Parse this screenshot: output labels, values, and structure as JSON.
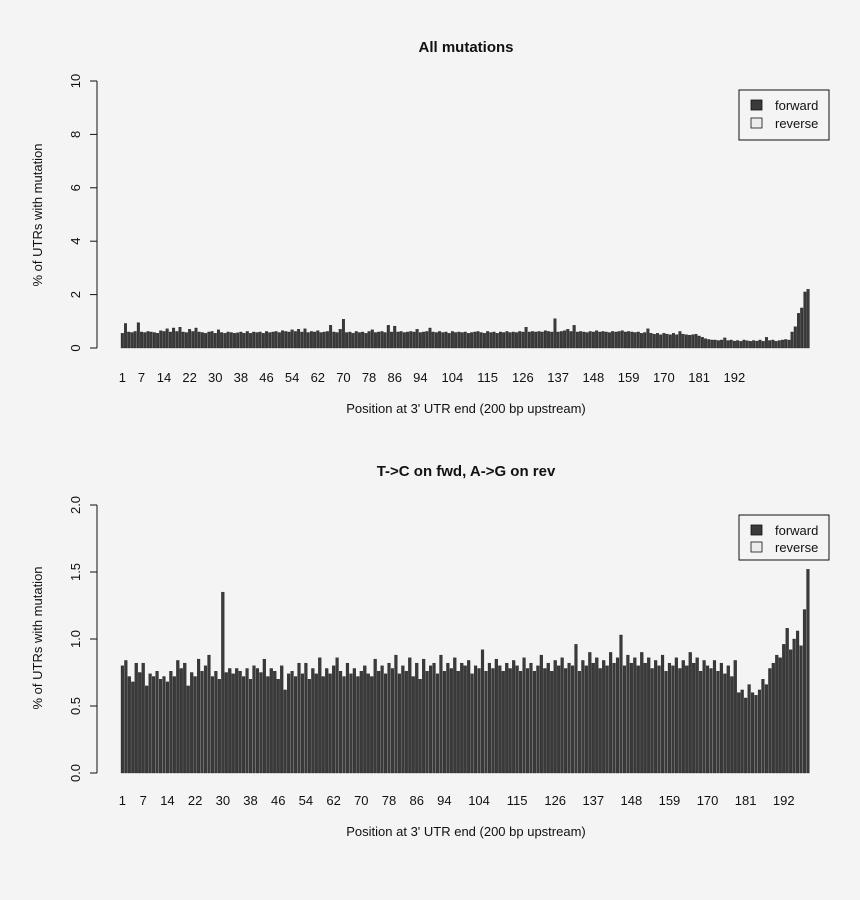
{
  "colors": {
    "background": "#f4f4f4",
    "forward": "#3a3a3a",
    "reverse": "#ececec",
    "ink": "#111111"
  },
  "chart_data": [
    {
      "type": "bar",
      "title": "All mutations",
      "xlabel": "Position at 3' UTR end (200 bp upstream)",
      "ylabel": "% of UTRs with mutation",
      "ylim": [
        0,
        10
      ],
      "yticks": [
        "0",
        "2",
        "4",
        "6",
        "8",
        "10"
      ],
      "ytick_values": [
        0,
        2,
        4,
        6,
        8,
        10
      ],
      "xtick_labels": [
        "1",
        "7",
        "14",
        "22",
        "30",
        "38",
        "46",
        "54",
        "62",
        "70",
        "78",
        "86",
        "94",
        "104",
        "115",
        "126",
        "137",
        "148",
        "159",
        "170",
        "181",
        "192"
      ],
      "legend": {
        "position": "top-right",
        "entries": [
          "forward",
          "reverse"
        ]
      },
      "grid": false,
      "series": [
        {
          "name": "forward",
          "values": [
            0.55,
            0.92,
            0.6,
            0.58,
            0.62,
            0.95,
            0.6,
            0.58,
            0.62,
            0.6,
            0.58,
            0.55,
            0.65,
            0.62,
            0.72,
            0.6,
            0.75,
            0.62,
            0.78,
            0.6,
            0.58,
            0.7,
            0.62,
            0.75,
            0.6,
            0.58,
            0.55,
            0.6,
            0.62,
            0.55,
            0.68,
            0.58,
            0.55,
            0.6,
            0.58,
            0.55,
            0.57,
            0.6,
            0.55,
            0.62,
            0.55,
            0.6,
            0.58,
            0.6,
            0.55,
            0.62,
            0.58,
            0.6,
            0.62,
            0.58,
            0.65,
            0.62,
            0.6,
            0.68,
            0.62,
            0.7,
            0.6,
            0.72,
            0.58,
            0.62,
            0.6,
            0.65,
            0.58,
            0.6,
            0.62,
            0.85,
            0.6,
            0.58,
            0.7,
            1.08,
            0.58,
            0.6,
            0.55,
            0.62,
            0.58,
            0.6,
            0.55,
            0.62,
            0.68,
            0.58,
            0.6,
            0.62,
            0.58,
            0.85,
            0.6,
            0.82,
            0.6,
            0.62,
            0.58,
            0.6,
            0.62,
            0.6,
            0.7,
            0.58,
            0.6,
            0.62,
            0.75,
            0.6,
            0.58,
            0.62,
            0.58,
            0.6,
            0.55,
            0.62,
            0.58,
            0.6,
            0.58,
            0.6,
            0.55,
            0.58,
            0.6,
            0.62,
            0.58,
            0.55,
            0.62,
            0.58,
            0.6,
            0.55,
            0.6,
            0.58,
            0.62,
            0.58,
            0.6,
            0.58,
            0.62,
            0.6,
            0.78,
            0.6,
            0.62,
            0.6,
            0.62,
            0.6,
            0.65,
            0.62,
            0.6,
            1.1,
            0.6,
            0.62,
            0.65,
            0.7,
            0.62,
            0.85,
            0.6,
            0.62,
            0.6,
            0.58,
            0.62,
            0.6,
            0.65,
            0.6,
            0.62,
            0.6,
            0.58,
            0.62,
            0.6,
            0.62,
            0.65,
            0.6,
            0.62,
            0.6,
            0.58,
            0.6,
            0.55,
            0.58,
            0.72,
            0.55,
            0.52,
            0.55,
            0.5,
            0.55,
            0.52,
            0.5,
            0.55,
            0.5,
            0.62,
            0.52,
            0.5,
            0.48,
            0.5,
            0.52,
            0.45,
            0.4,
            0.35,
            0.32,
            0.3,
            0.3,
            0.28,
            0.3,
            0.38,
            0.28,
            0.3,
            0.26,
            0.28,
            0.25,
            0.3,
            0.27,
            0.25,
            0.28,
            0.26,
            0.3,
            0.25,
            0.4,
            0.28,
            0.3,
            0.25,
            0.28,
            0.3,
            0.32,
            0.3,
            0.6,
            0.8,
            1.3,
            1.5,
            2.1,
            2.2
          ]
        },
        {
          "name": "reverse",
          "values": []
        }
      ]
    },
    {
      "type": "bar",
      "title": "T->C on fwd, A->G on rev",
      "xlabel": "Position at 3' UTR end (200 bp upstream)",
      "ylabel": "% of UTRs with mutation",
      "ylim": [
        0,
        2
      ],
      "yticks": [
        "0.0",
        "0.5",
        "1.0",
        "1.5",
        "2.0"
      ],
      "ytick_values": [
        0,
        0.5,
        1,
        1.5,
        2
      ],
      "xtick_labels": [
        "1",
        "7",
        "14",
        "22",
        "30",
        "38",
        "46",
        "54",
        "62",
        "70",
        "78",
        "86",
        "94",
        "104",
        "115",
        "126",
        "137",
        "148",
        "159",
        "170",
        "181",
        "192"
      ],
      "legend": {
        "position": "top-right",
        "entries": [
          "forward",
          "reverse"
        ]
      },
      "grid": false,
      "series": [
        {
          "name": "forward",
          "values": [
            0.8,
            0.84,
            0.72,
            0.68,
            0.82,
            0.75,
            0.82,
            0.65,
            0.74,
            0.72,
            0.76,
            0.7,
            0.72,
            0.68,
            0.76,
            0.72,
            0.84,
            0.78,
            0.82,
            0.65,
            0.75,
            0.72,
            0.85,
            0.76,
            0.8,
            0.88,
            0.72,
            0.76,
            0.7,
            1.35,
            0.75,
            0.78,
            0.74,
            0.78,
            0.76,
            0.72,
            0.78,
            0.7,
            0.8,
            0.78,
            0.75,
            0.85,
            0.72,
            0.78,
            0.76,
            0.7,
            0.8,
            0.62,
            0.74,
            0.76,
            0.72,
            0.82,
            0.74,
            0.82,
            0.7,
            0.78,
            0.74,
            0.86,
            0.72,
            0.78,
            0.74,
            0.8,
            0.86,
            0.76,
            0.72,
            0.82,
            0.74,
            0.78,
            0.72,
            0.76,
            0.8,
            0.74,
            0.72,
            0.85,
            0.76,
            0.8,
            0.74,
            0.82,
            0.78,
            0.88,
            0.74,
            0.8,
            0.76,
            0.86,
            0.72,
            0.82,
            0.7,
            0.85,
            0.76,
            0.8,
            0.82,
            0.74,
            0.88,
            0.76,
            0.82,
            0.78,
            0.86,
            0.76,
            0.82,
            0.8,
            0.84,
            0.74,
            0.8,
            0.78,
            0.92,
            0.76,
            0.82,
            0.78,
            0.85,
            0.8,
            0.76,
            0.82,
            0.78,
            0.84,
            0.8,
            0.76,
            0.86,
            0.78,
            0.82,
            0.76,
            0.8,
            0.88,
            0.78,
            0.82,
            0.76,
            0.84,
            0.8,
            0.86,
            0.78,
            0.82,
            0.8,
            0.96,
            0.76,
            0.84,
            0.8,
            0.9,
            0.82,
            0.86,
            0.78,
            0.84,
            0.8,
            0.9,
            0.82,
            0.86,
            1.03,
            0.8,
            0.88,
            0.82,
            0.86,
            0.8,
            0.9,
            0.82,
            0.86,
            0.78,
            0.84,
            0.8,
            0.88,
            0.76,
            0.82,
            0.8,
            0.86,
            0.78,
            0.84,
            0.8,
            0.9,
            0.82,
            0.86,
            0.76,
            0.84,
            0.8,
            0.78,
            0.84,
            0.76,
            0.82,
            0.74,
            0.8,
            0.72,
            0.84,
            0.6,
            0.62,
            0.56,
            0.66,
            0.6,
            0.58,
            0.62,
            0.7,
            0.66,
            0.78,
            0.82,
            0.88,
            0.86,
            0.96,
            1.08,
            0.92,
            1.0,
            1.06,
            0.95,
            1.22,
            1.52
          ]
        },
        {
          "name": "reverse",
          "values": []
        }
      ]
    }
  ]
}
